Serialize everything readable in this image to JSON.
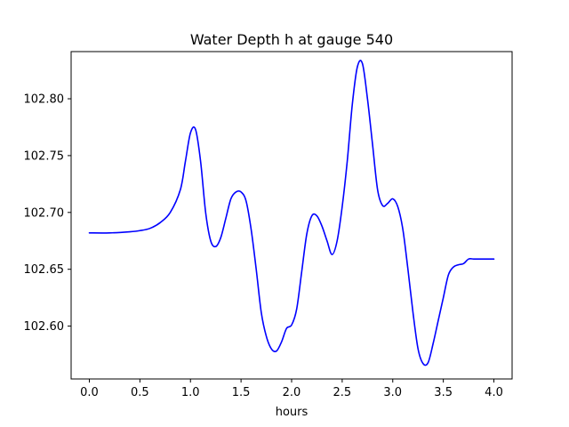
{
  "chart_data": {
    "type": "line",
    "title": "Water Depth h at gauge 540",
    "xlabel": "hours",
    "ylabel": "",
    "xlim": [
      -0.18,
      4.18
    ],
    "ylim": [
      102.5535,
      102.8415
    ],
    "grid": false,
    "x_ticks": [
      0.0,
      0.5,
      1.0,
      1.5,
      2.0,
      2.5,
      3.0,
      3.5,
      4.0
    ],
    "x_tick_labels": [
      "0.0",
      "0.5",
      "1.0",
      "1.5",
      "2.0",
      "2.5",
      "3.0",
      "3.5",
      "4.0"
    ],
    "y_ticks": [
      102.6,
      102.65,
      102.7,
      102.75,
      102.8
    ],
    "y_tick_labels": [
      "102.60",
      "102.65",
      "102.70",
      "102.75",
      "102.80"
    ],
    "series": [
      {
        "color": "#0000ff",
        "x": [
          0.0,
          0.2,
          0.4,
          0.5,
          0.6,
          0.7,
          0.8,
          0.9,
          0.95,
          1.0,
          1.05,
          1.1,
          1.15,
          1.2,
          1.25,
          1.3,
          1.35,
          1.4,
          1.45,
          1.5,
          1.55,
          1.6,
          1.65,
          1.7,
          1.75,
          1.8,
          1.85,
          1.9,
          1.95,
          2.0,
          2.05,
          2.1,
          2.15,
          2.2,
          2.25,
          2.3,
          2.35,
          2.4,
          2.45,
          2.5,
          2.55,
          2.6,
          2.65,
          2.7,
          2.75,
          2.8,
          2.85,
          2.9,
          2.95,
          3.0,
          3.05,
          3.1,
          3.15,
          3.2,
          3.25,
          3.3,
          3.35,
          3.4,
          3.45,
          3.5,
          3.55,
          3.6,
          3.65,
          3.7,
          3.75,
          3.8,
          3.85,
          3.9,
          3.95,
          4.0
        ],
        "y": [
          102.682,
          102.682,
          102.683,
          102.684,
          102.686,
          102.691,
          102.7,
          102.72,
          102.745,
          102.77,
          102.773,
          102.745,
          102.7,
          102.675,
          102.67,
          102.678,
          102.695,
          102.712,
          102.718,
          102.718,
          102.71,
          102.685,
          102.65,
          102.612,
          102.591,
          102.58,
          102.578,
          102.586,
          102.598,
          102.601,
          102.615,
          102.648,
          102.681,
          102.697,
          102.697,
          102.688,
          102.675,
          102.663,
          102.675,
          102.705,
          102.745,
          102.795,
          102.828,
          102.831,
          102.8,
          102.76,
          102.72,
          102.706,
          102.708,
          102.712,
          102.705,
          102.685,
          102.65,
          102.612,
          102.58,
          102.567,
          102.568,
          102.585,
          102.605,
          102.625,
          102.645,
          102.652,
          102.654,
          102.655,
          102.659,
          102.659,
          102.659,
          102.659,
          102.659,
          102.659
        ]
      }
    ]
  }
}
